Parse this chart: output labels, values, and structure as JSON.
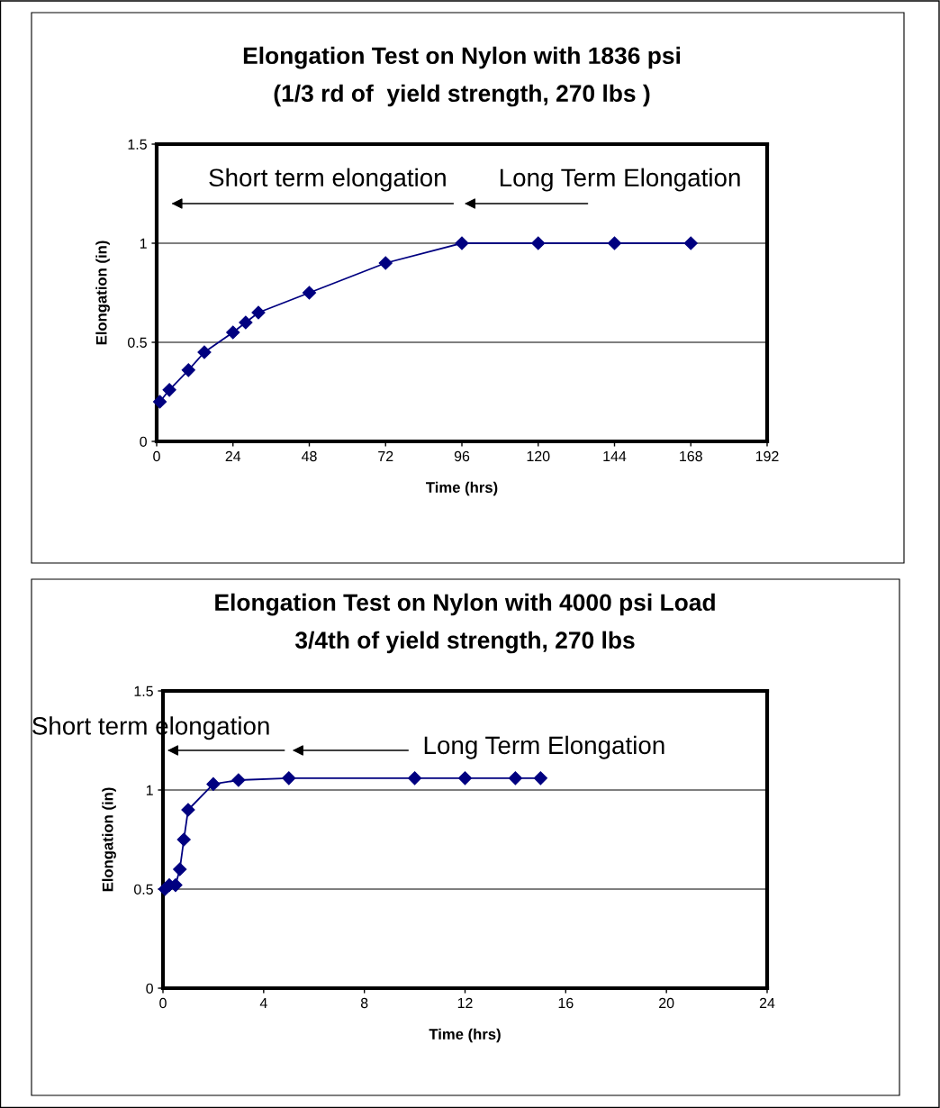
{
  "chart_data": [
    {
      "type": "line",
      "title": "Elongation Test on Nylon with 1836 psi\n(1/3 rd of  yield strength, 270 lbs )",
      "xlabel": "Time (hrs)",
      "ylabel": "Elongation (in)",
      "x": [
        1,
        4,
        10,
        15,
        24,
        28,
        32,
        48,
        72,
        96,
        120,
        144,
        168
      ],
      "series": [
        {
          "color": "#000080",
          "values": [
            0.2,
            0.26,
            0.36,
            0.45,
            0.55,
            0.6,
            0.65,
            0.75,
            0.9,
            1,
            1,
            1,
            1
          ]
        }
      ],
      "xlim": [
        0,
        192
      ],
      "xticks": [
        0,
        24,
        48,
        72,
        96,
        120,
        144,
        168,
        192
      ],
      "ylim": [
        0,
        1.5
      ],
      "yticks": [
        0,
        0.5,
        1,
        1.5
      ],
      "grid": "y",
      "marker": "diamond",
      "line_style": "solid",
      "annotations": [
        "Short term elongation",
        "Long Term Elongation"
      ]
    },
    {
      "type": "line",
      "title": "Elongation Test on Nylon with 4000 psi Load\n3/4th of yield strength, 270 lbs",
      "xlabel": "Time (hrs)",
      "ylabel": "Elongation (in)",
      "x": [
        0.08,
        0.25,
        0.5,
        0.67,
        0.83,
        1,
        2,
        3,
        5,
        10,
        12,
        14,
        15
      ],
      "series": [
        {
          "color": "#000080",
          "values": [
            0.5,
            0.52,
            0.52,
            0.6,
            0.75,
            0.9,
            1.03,
            1.05,
            1.06,
            1.06,
            1.06,
            1.06,
            1.06
          ]
        }
      ],
      "xlim": [
        0,
        24
      ],
      "xticks": [
        0,
        4,
        8,
        12,
        16,
        20,
        24
      ],
      "ylim": [
        0,
        1.5
      ],
      "yticks": [
        0,
        0.5,
        1,
        1.5
      ],
      "grid": "y",
      "marker": "diamond",
      "line_style": "solid",
      "annotations": [
        "Short term elongation",
        "Long Term Elongation"
      ]
    }
  ]
}
